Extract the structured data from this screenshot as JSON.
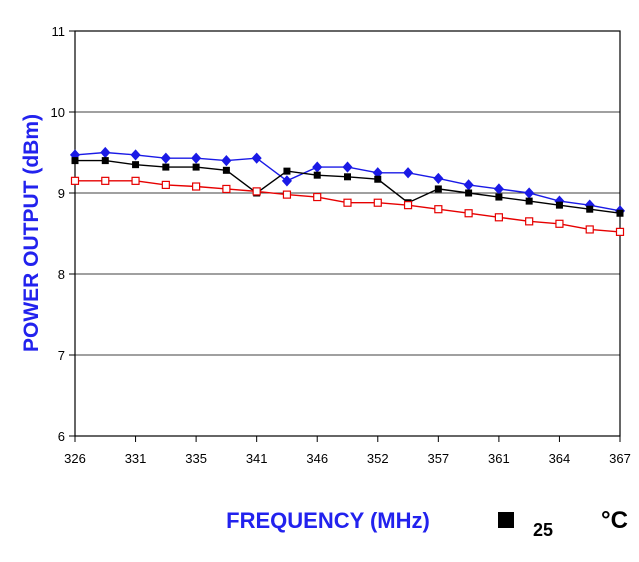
{
  "chart_data": {
    "type": "line",
    "title": "",
    "xlabel": "FREQUENCY (MHz)",
    "ylabel": "POWER OUTPUT (dBm)",
    "ylim": [
      6,
      11
    ],
    "yticks": [
      "6",
      "7",
      "8",
      "9",
      "10",
      "11"
    ],
    "grid": "horizontal",
    "xtick_labels": [
      "326",
      "331",
      "335",
      "341",
      "346",
      "352",
      "357",
      "361",
      "364",
      "367"
    ],
    "legend": {
      "marker_label": "25",
      "unit": "°C",
      "placement": "bottom-right"
    },
    "series": [
      {
        "name": "",
        "color": "#1a1ae6",
        "marker": "diamond",
        "x": [
          0,
          1,
          2,
          3,
          4,
          5,
          6,
          7,
          8,
          9,
          10,
          11,
          12,
          13,
          14,
          15,
          16,
          17,
          18
        ],
        "values": [
          9.47,
          9.5,
          9.47,
          9.43,
          9.43,
          9.4,
          9.43,
          9.15,
          9.32,
          9.32,
          9.25,
          9.25,
          9.18,
          9.1,
          9.05,
          9.0,
          8.9,
          8.85,
          8.78
        ]
      },
      {
        "name": "",
        "color": "#000000",
        "marker": "square",
        "x": [
          0,
          1,
          2,
          3,
          4,
          5,
          6,
          7,
          8,
          9,
          10,
          11,
          12,
          13,
          14,
          15,
          16,
          17,
          18
        ],
        "values": [
          9.4,
          9.4,
          9.35,
          9.32,
          9.32,
          9.28,
          9.0,
          9.27,
          9.22,
          9.2,
          9.17,
          8.88,
          9.05,
          9.0,
          8.95,
          8.9,
          8.85,
          8.8,
          8.75
        ]
      },
      {
        "name": "",
        "color": "#e60000",
        "marker": "open-square",
        "x": [
          0,
          1,
          2,
          3,
          4,
          5,
          6,
          7,
          8,
          9,
          10,
          11,
          12,
          13,
          14,
          15,
          16,
          17,
          18
        ],
        "values": [
          9.15,
          9.15,
          9.15,
          9.1,
          9.08,
          9.05,
          9.02,
          8.98,
          8.95,
          8.88,
          8.88,
          8.85,
          8.8,
          8.75,
          8.7,
          8.65,
          8.62,
          8.55,
          8.52
        ]
      }
    ]
  }
}
